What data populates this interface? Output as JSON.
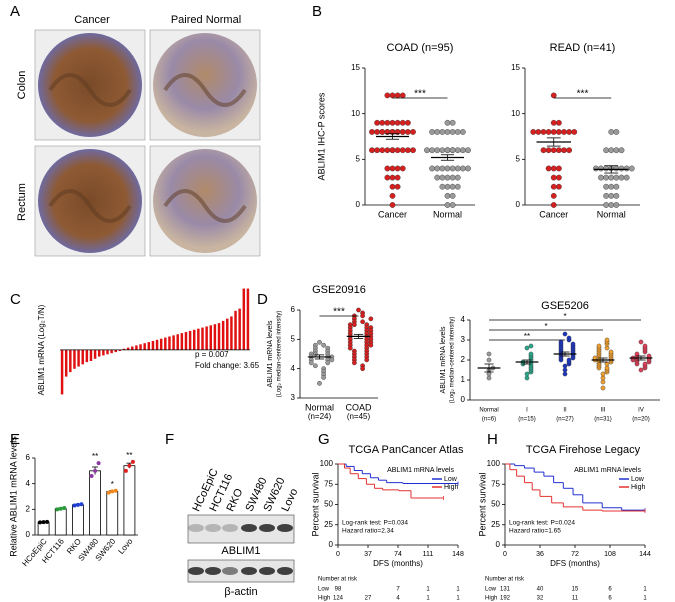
{
  "panel_labels": [
    "A",
    "B",
    "C",
    "D",
    "E",
    "F",
    "G",
    "H"
  ],
  "panel_a": {
    "columns": [
      "Cancer",
      "Paired Normal"
    ],
    "rows": [
      "Colon",
      "Rectum"
    ]
  },
  "panel_f": {
    "lanes": [
      "HCoEpiC",
      "HCT116",
      "RKO",
      "SW480",
      "SW620",
      "Lovo"
    ],
    "bands": [
      "ABLIM1",
      "β-actin"
    ]
  },
  "chart_data": [
    {
      "type": "dot",
      "title": "COAD (n=95)",
      "ylabel": "ABLIM1 IHC-P scores",
      "categories": [
        "Cancer",
        "Normal"
      ],
      "colors": [
        "#d62020",
        "#9a9a9a"
      ],
      "values": [
        [
          12,
          12,
          12,
          9,
          9,
          9,
          9,
          9,
          9,
          8,
          8,
          8,
          8,
          8,
          8,
          8,
          8,
          8,
          8,
          8,
          8,
          6,
          6,
          6,
          6,
          6,
          6,
          6,
          6,
          4,
          4,
          4,
          3,
          3,
          2,
          1,
          0,
          9,
          8,
          6,
          12,
          8,
          6,
          4,
          3,
          2
        ],
        [
          9,
          9,
          8,
          8,
          8,
          8,
          8,
          8,
          6,
          6,
          6,
          6,
          6,
          6,
          6,
          6,
          6,
          4,
          4,
          4,
          4,
          4,
          4,
          4,
          3,
          3,
          3,
          3,
          2,
          2,
          2,
          1,
          1,
          0,
          0,
          8,
          6,
          6,
          4,
          3,
          2
        ]
      ],
      "means": [
        7.5,
        5.2
      ],
      "errors": [
        0.3,
        0.3
      ],
      "significance": "***",
      "ylim": [
        0,
        15
      ],
      "yticks": [
        0,
        5,
        10,
        15
      ]
    },
    {
      "type": "dot",
      "title": "READ (n=41)",
      "categories": [
        "Cancer",
        "Normal"
      ],
      "colors": [
        "#d62020",
        "#9a9a9a"
      ],
      "values": [
        [
          12,
          9,
          9,
          8,
          8,
          8,
          8,
          8,
          8,
          8,
          8,
          8,
          6,
          6,
          6,
          6,
          6,
          6,
          4,
          4,
          4,
          3,
          3,
          2,
          2,
          1,
          0
        ],
        [
          8,
          8,
          6,
          6,
          6,
          6,
          4,
          4,
          4,
          4,
          4,
          4,
          4,
          4,
          3,
          3,
          3,
          3,
          3,
          3,
          2,
          2,
          2,
          1,
          1,
          1,
          0,
          0,
          0
        ]
      ],
      "means": [
        6.9,
        3.9
      ],
      "errors": [
        0.45,
        0.4
      ],
      "significance": "***",
      "ylim": [
        0,
        15
      ],
      "yticks": [
        0,
        5,
        10,
        15
      ]
    },
    {
      "type": "bar",
      "ylabel": "ABLIM1 mRNA (Log₂T/N)",
      "color": "#e01010",
      "annotations": [
        "p = 0.007",
        "Fold change: 3.65"
      ],
      "values": [
        -4,
        -2.4,
        -2,
        -1.7,
        -1.5,
        -1.3,
        -1.1,
        -1,
        -0.8,
        -0.6,
        -0.5,
        -0.4,
        -0.3,
        -0.2,
        -0.1,
        0.1,
        0.2,
        0.3,
        0.4,
        0.5,
        0.6,
        0.7,
        0.8,
        0.9,
        1.0,
        1.1,
        1.2,
        1.3,
        1.4,
        1.5,
        1.6,
        1.7,
        1.8,
        1.9,
        2.0,
        2.1,
        2.2,
        2.3,
        2.4,
        2.6,
        2.8,
        3.0,
        3.5,
        3.7,
        5.5,
        5.5
      ],
      "ylim": [
        -4.5,
        6
      ]
    },
    {
      "type": "dot",
      "title": "GSE20916",
      "ylabel": "ABLIM1 mRNA levels",
      "ylabel2": "(Log₂ median-centered intensity)",
      "categories": [
        "Normal",
        "COAD"
      ],
      "category_notes": [
        "(n=24)",
        "(n=45)"
      ],
      "colors": [
        "#9a9a9a",
        "#d62020"
      ],
      "values": [
        [
          4.9,
          4.8,
          4.8,
          4.7,
          4.7,
          4.6,
          4.6,
          4.5,
          4.5,
          4.5,
          4.4,
          4.4,
          4.4,
          4.3,
          4.3,
          4.3,
          4.2,
          4.2,
          4.1,
          4.0,
          3.9,
          3.8,
          3.7,
          3.5
        ],
        [
          6.0,
          5.9,
          5.8,
          5.8,
          5.7,
          5.6,
          5.6,
          5.5,
          5.5,
          5.5,
          5.4,
          5.4,
          5.4,
          5.3,
          5.3,
          5.3,
          5.2,
          5.2,
          5.2,
          5.1,
          5.1,
          5.1,
          5.0,
          5.0,
          5.0,
          4.9,
          4.9,
          4.9,
          4.8,
          4.8,
          4.8,
          4.7,
          4.7,
          4.6,
          4.6,
          4.5,
          4.5,
          4.4,
          4.4,
          4.3,
          4.3,
          4.2,
          4.1,
          4.0,
          5.7
        ]
      ],
      "means": [
        4.4,
        5.1
      ],
      "errors": [
        0.07,
        0.07
      ],
      "significance": "***",
      "ylim": [
        3,
        6
      ],
      "yticks": [
        3,
        4,
        5,
        6
      ]
    },
    {
      "type": "dot",
      "title": "GSE5206",
      "ylabel": "ABLIM1 mRNA levels",
      "ylabel2": "(Log₂ median-centered intensity)",
      "categories": [
        "Normal",
        "I",
        "II",
        "III",
        "IV"
      ],
      "category_notes": [
        "(n=6)",
        "(n=15)",
        "(n=27)",
        "(n=31)",
        "(n=20)"
      ],
      "colors": [
        "#9a9a9a",
        "#2aa88a",
        "#1c36c0",
        "#f0a030",
        "#e0405a"
      ],
      "values": [
        [
          1.1,
          1.3,
          1.5,
          1.6,
          2.0,
          2.3
        ],
        [
          1.1,
          1.3,
          1.4,
          1.5,
          1.6,
          1.7,
          1.8,
          1.8,
          1.9,
          2.0,
          2.1,
          2.2,
          2.3,
          2.6,
          2.7
        ],
        [
          1.3,
          1.5,
          1.7,
          1.8,
          1.9,
          2.0,
          2.0,
          2.1,
          2.1,
          2.2,
          2.2,
          2.3,
          2.3,
          2.4,
          2.4,
          2.5,
          2.5,
          2.6,
          2.6,
          2.7,
          2.7,
          2.8,
          2.8,
          2.9,
          3.0,
          3.1,
          3.3
        ],
        [
          0.6,
          0.9,
          1.1,
          1.3,
          1.4,
          1.5,
          1.6,
          1.6,
          1.7,
          1.8,
          1.8,
          1.9,
          1.9,
          2.0,
          2.0,
          2.0,
          2.1,
          2.1,
          2.2,
          2.2,
          2.3,
          2.3,
          2.4,
          2.4,
          2.5,
          2.6,
          2.6,
          2.7,
          2.8,
          2.9,
          3.0
        ],
        [
          1.5,
          1.6,
          1.7,
          1.8,
          1.8,
          1.9,
          1.9,
          2.0,
          2.0,
          2.0,
          2.1,
          2.1,
          2.2,
          2.2,
          2.3,
          2.4,
          2.5,
          2.6,
          2.7,
          2.9
        ]
      ],
      "means": [
        1.6,
        1.9,
        2.3,
        2.0,
        2.1
      ],
      "errors": [
        0.2,
        0.1,
        0.1,
        0.1,
        0.1
      ],
      "significance": [
        "**",
        "*",
        "*"
      ],
      "ylim": [
        0,
        4
      ],
      "yticks": [
        0,
        1,
        2,
        3,
        4
      ]
    },
    {
      "type": "bar_dots",
      "ylabel": "Relative ABLIM1 mRNA levels",
      "categories": [
        "HCoEpiC",
        "HCT116",
        "RKO",
        "SW480",
        "SW620",
        "Lovo"
      ],
      "colors": [
        "#000000",
        "#2a9a3a",
        "#2040d0",
        "#8a3aa0",
        "#f08a20",
        "#e02020"
      ],
      "values": [
        1.0,
        2.05,
        2.35,
        5.0,
        3.4,
        5.4
      ],
      "errors": [
        0.02,
        0.05,
        0.05,
        0.3,
        0.05,
        0.2
      ],
      "points": [
        [
          0.98,
          1.0,
          1.02
        ],
        [
          2.0,
          2.05,
          2.1
        ],
        [
          2.3,
          2.35,
          2.4
        ],
        [
          4.6,
          5.0,
          5.6
        ],
        [
          3.3,
          3.4,
          3.45
        ],
        [
          5.0,
          5.4,
          5.7
        ]
      ],
      "significance": [
        null,
        null,
        null,
        "**",
        "*",
        "**"
      ],
      "ylim": [
        0,
        6
      ],
      "yticks": [
        0,
        2,
        4,
        6
      ]
    },
    {
      "type": "km",
      "title": "TCGA PanCancer Atlas",
      "xlabel": "DFS (months)",
      "ylabel": "Percent survival",
      "legend_title": "ABLIM1 mRNA levels",
      "annotations": [
        "Log-rank test: P=0.034",
        "Hazard ratio=2.34"
      ],
      "series": [
        {
          "name": "Low",
          "color": "#2030d0",
          "x": [
            0,
            10,
            20,
            30,
            40,
            50,
            60,
            80,
            148
          ],
          "values": [
            100,
            97,
            92,
            88,
            83,
            80,
            77,
            76,
            76
          ]
        },
        {
          "name": "High",
          "color": "#e53030",
          "x": [
            0,
            8,
            15,
            25,
            35,
            45,
            55,
            75,
            90,
            130
          ],
          "values": [
            100,
            95,
            88,
            82,
            75,
            70,
            68,
            67,
            58,
            58
          ]
        }
      ],
      "risk_title": "Number at risk",
      "risk": [
        [
          98,
          null,
          7,
          1,
          1
        ],
        [
          124,
          27,
          4,
          1,
          1
        ]
      ],
      "xlim": [
        0,
        148
      ],
      "xticks": [
        0,
        37,
        74,
        111,
        148
      ],
      "ylim": [
        0,
        100
      ],
      "yticks": [
        0,
        25,
        50,
        75,
        100
      ]
    },
    {
      "type": "km",
      "title": "TCGA Firehose Legacy",
      "xlabel": "DFS (months)",
      "ylabel": "Percent survival",
      "legend_title": "ABLIM1 mRNA levels",
      "annotations": [
        "Log-rank test: P=0.024",
        "Hazard ratio=1.65"
      ],
      "series": [
        {
          "name": "Low",
          "color": "#2030d0",
          "x": [
            0,
            10,
            20,
            30,
            40,
            50,
            60,
            70,
            80,
            100,
            120,
            144
          ],
          "values": [
            100,
            98,
            95,
            90,
            85,
            77,
            70,
            62,
            52,
            46,
            43,
            43
          ]
        },
        {
          "name": "High",
          "color": "#e53030",
          "x": [
            0,
            5,
            12,
            20,
            28,
            36,
            48,
            60,
            80,
            100,
            144
          ],
          "values": [
            100,
            93,
            85,
            77,
            68,
            60,
            52,
            47,
            43,
            42,
            42
          ]
        }
      ],
      "risk_title": "Number at risk",
      "risk": [
        [
          131,
          40,
          15,
          6,
          1
        ],
        [
          192,
          32,
          11,
          6,
          1
        ]
      ],
      "xlim": [
        0,
        144
      ],
      "xticks": [
        0,
        36,
        72,
        108,
        144
      ],
      "ylim": [
        0,
        100
      ],
      "yticks": [
        0,
        25,
        50,
        75,
        100
      ]
    }
  ]
}
